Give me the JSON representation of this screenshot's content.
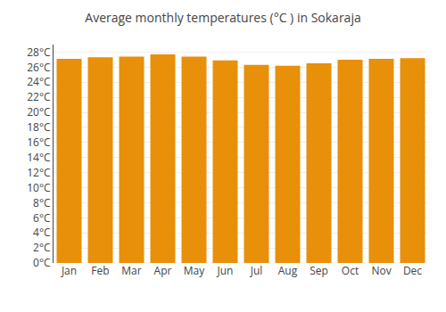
{
  "chart_data": {
    "type": "bar",
    "title": "Average monthly temperatures (°C ) in Sokaraja",
    "categories": [
      "Jan",
      "Feb",
      "Mar",
      "Apr",
      "May",
      "Jun",
      "Jul",
      "Aug",
      "Sep",
      "Oct",
      "Nov",
      "Dec"
    ],
    "values": [
      27.1,
      27.3,
      27.4,
      27.7,
      27.4,
      26.9,
      26.3,
      26.2,
      26.5,
      27.0,
      27.1,
      27.2
    ],
    "color": "#E8900A",
    "ylim": [
      0,
      29
    ],
    "yticks": [
      {
        "value": 0,
        "label": "0°C"
      },
      {
        "value": 2,
        "label": "2°C"
      },
      {
        "value": 4,
        "label": "4°C"
      },
      {
        "value": 6,
        "label": "6°C"
      },
      {
        "value": 8,
        "label": "8°C"
      },
      {
        "value": 10,
        "label": "10°C"
      },
      {
        "value": 12,
        "label": "12°C"
      },
      {
        "value": 14,
        "label": "14°C"
      },
      {
        "value": 16,
        "label": "16°C"
      },
      {
        "value": 18,
        "label": "18°C"
      },
      {
        "value": 20,
        "label": "20°C"
      },
      {
        "value": 22,
        "label": "22°C"
      },
      {
        "value": 24,
        "label": "24°C"
      },
      {
        "value": 26,
        "label": "26°C"
      },
      {
        "value": 28,
        "label": "28°C"
      }
    ],
    "grid": true
  }
}
